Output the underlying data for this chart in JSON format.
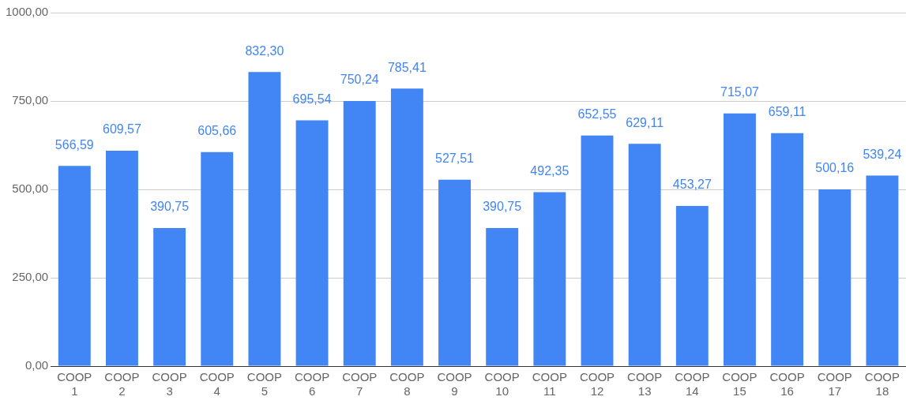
{
  "chart_data": {
    "type": "bar",
    "categories": [
      "COOP 1",
      "COOP 2",
      "COOP 3",
      "COOP 4",
      "COOP 5",
      "COOP 6",
      "COOP 7",
      "COOP 8",
      "COOP 9",
      "COOP 10",
      "COOP 11",
      "COOP 12",
      "COOP 13",
      "COOP 14",
      "COOP 15",
      "COOP 16",
      "COOP 17",
      "COOP 18"
    ],
    "values": [
      566.59,
      609.57,
      390.75,
      605.66,
      832.3,
      695.54,
      750.24,
      785.41,
      527.51,
      390.75,
      492.35,
      652.55,
      629.11,
      453.27,
      715.07,
      659.11,
      500.16,
      539.24
    ],
    "value_labels": [
      "566,59",
      "609,57",
      "390,75",
      "605,66",
      "832,30",
      "695,54",
      "750,24",
      "785,41",
      "527,51",
      "390,75",
      "492,35",
      "652,55",
      "629,11",
      "453,27",
      "715,07",
      "659,11",
      "500,16",
      "539,24"
    ],
    "color": "#4285f4",
    "ylim": [
      0,
      1000
    ],
    "yticks": [
      {
        "value": 0,
        "label": "0,00"
      },
      {
        "value": 250,
        "label": "250,00"
      },
      {
        "value": 500,
        "label": "500,00"
      },
      {
        "value": 750,
        "label": "750,00"
      },
      {
        "value": 1000,
        "label": "1000,00"
      }
    ],
    "grid": "y",
    "legend": false
  }
}
